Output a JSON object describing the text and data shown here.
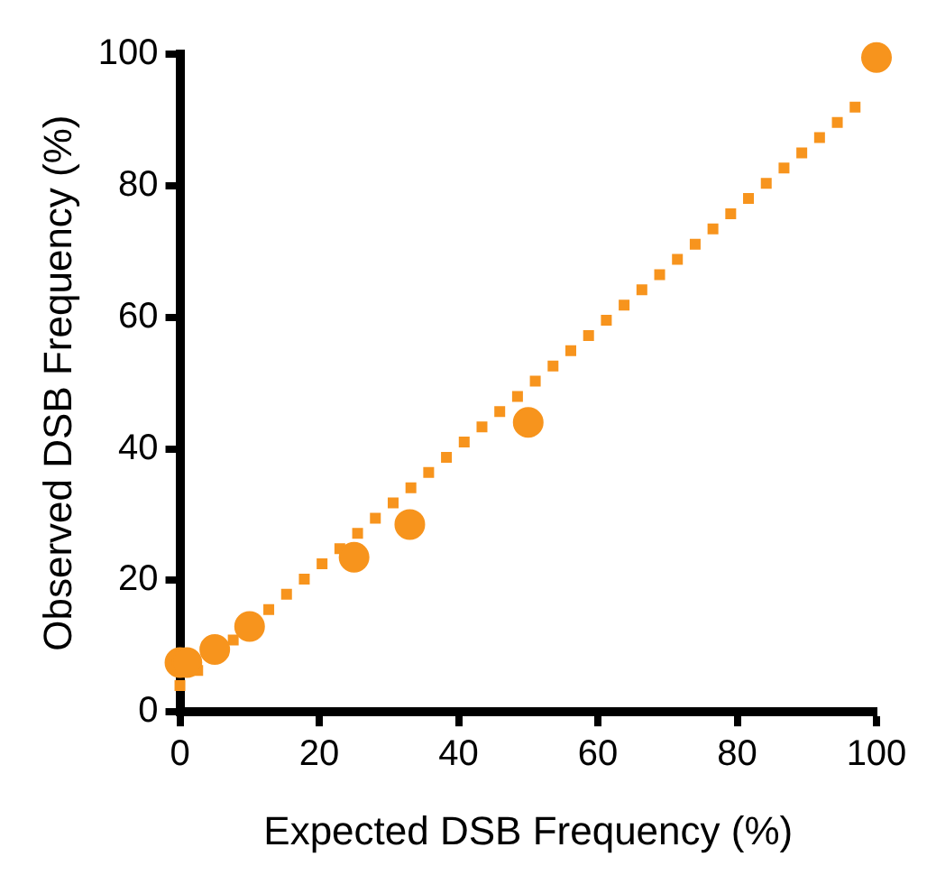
{
  "chart_data": {
    "type": "scatter",
    "xlabel": "Expected DSB Frequency (%)",
    "ylabel": "Observed DSB Frequency (%)",
    "xlim": [
      0,
      100
    ],
    "ylim": [
      0,
      100
    ],
    "xticks": [
      0,
      20,
      40,
      60,
      80,
      100
    ],
    "yticks": [
      0,
      20,
      40,
      60,
      80,
      100
    ],
    "grid": false,
    "legend": false,
    "series": [
      {
        "type": "scatter",
        "color": "#f7941d",
        "marker": "circle",
        "x": [
          0,
          1,
          5,
          10,
          25,
          33,
          50,
          100
        ],
        "values": [
          7.5,
          7.5,
          9.5,
          13,
          23.5,
          28.5,
          44,
          99.5
        ]
      },
      {
        "type": "line",
        "color": "#f7941d",
        "line_style": "dotted",
        "marker": "none",
        "x": [
          0,
          97
        ],
        "values": [
          4,
          92
        ]
      }
    ]
  }
}
